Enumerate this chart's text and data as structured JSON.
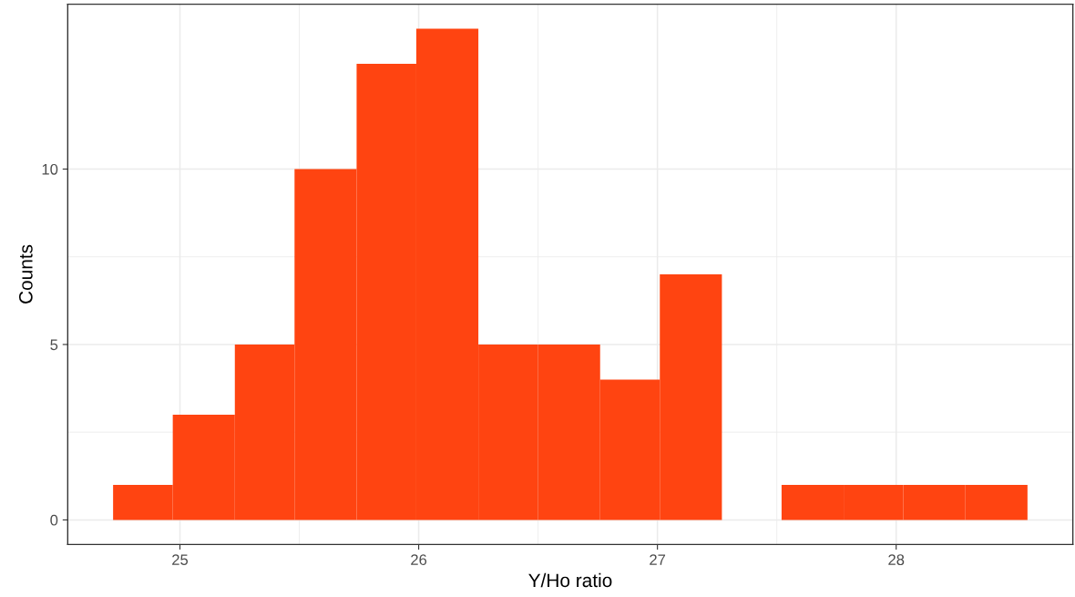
{
  "chart_data": {
    "type": "histogram",
    "xlabel": "Y/Ho ratio",
    "ylabel": "Counts",
    "color": "#ff4411",
    "bins": [
      24.72,
      24.97,
      25.23,
      25.48,
      25.74,
      25.99,
      26.25,
      26.5,
      26.76,
      27.01,
      27.27,
      27.52,
      27.78,
      28.03,
      28.29,
      28.55
    ],
    "values": [
      1,
      3,
      5,
      10,
      13,
      14,
      5,
      5,
      4,
      7,
      0,
      1,
      1,
      1,
      1
    ],
    "xlim": [
      24.53,
      28.74
    ],
    "ylim": [
      -0.7,
      14.7
    ],
    "xticks": [
      25,
      26,
      27,
      28
    ],
    "yticks": [
      0,
      5,
      10
    ],
    "grid": true
  }
}
